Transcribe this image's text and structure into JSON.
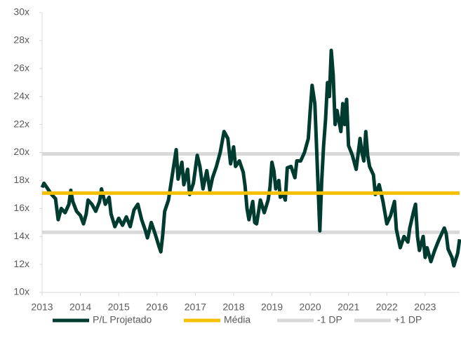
{
  "chart_data": {
    "type": "line",
    "xlim": [
      2013,
      2023.9
    ],
    "xticks": [
      2013,
      2014,
      2015,
      2016,
      2017,
      2018,
      2019,
      2020,
      2021,
      2022,
      2023
    ],
    "ylim": [
      10,
      30
    ],
    "yticks": [
      {
        "value": 10,
        "label": "10x"
      },
      {
        "value": 12,
        "label": "12x"
      },
      {
        "value": 14,
        "label": "14x"
      },
      {
        "value": 16,
        "label": "16x"
      },
      {
        "value": 18,
        "label": "18x"
      },
      {
        "value": 20,
        "label": "20x"
      },
      {
        "value": 22,
        "label": "22x"
      },
      {
        "value": 24,
        "label": "24x"
      },
      {
        "value": 26,
        "label": "26x"
      },
      {
        "value": 28,
        "label": "28x"
      },
      {
        "value": 30,
        "label": "30x"
      }
    ],
    "series": [
      {
        "name": "P/L Projetado",
        "color": "#003b30",
        "x": [
          2013.0,
          2013.05,
          2013.15,
          2013.25,
          2013.35,
          2013.42,
          2013.5,
          2013.6,
          2013.7,
          2013.75,
          2013.8,
          2013.9,
          2014.0,
          2014.08,
          2014.15,
          2014.2,
          2014.3,
          2014.4,
          2014.5,
          2014.55,
          2014.65,
          2014.75,
          2014.8,
          2014.9,
          2015.0,
          2015.1,
          2015.2,
          2015.3,
          2015.4,
          2015.5,
          2015.6,
          2015.7,
          2015.75,
          2015.85,
          2015.95,
          2016.05,
          2016.1,
          2016.15,
          2016.2,
          2016.3,
          2016.4,
          2016.5,
          2016.55,
          2016.65,
          2016.7,
          2016.8,
          2016.85,
          2016.95,
          2017.05,
          2017.12,
          2017.2,
          2017.3,
          2017.38,
          2017.45,
          2017.55,
          2017.65,
          2017.75,
          2017.85,
          2017.92,
          2018.0,
          2018.05,
          2018.15,
          2018.25,
          2018.3,
          2018.35,
          2018.4,
          2018.5,
          2018.55,
          2018.6,
          2018.7,
          2018.8,
          2018.9,
          2018.95,
          2019.0,
          2019.05,
          2019.1,
          2019.18,
          2019.22,
          2019.3,
          2019.35,
          2019.4,
          2019.5,
          2019.6,
          2019.65,
          2019.75,
          2019.85,
          2019.95,
          2020.0,
          2020.05,
          2020.12,
          2020.15,
          2020.2,
          2020.25,
          2020.3,
          2020.35,
          2020.4,
          2020.45,
          2020.5,
          2020.55,
          2020.6,
          2020.65,
          2020.7,
          2020.8,
          2020.85,
          2020.9,
          2020.95,
          2021.0,
          2021.1,
          2021.2,
          2021.3,
          2021.35,
          2021.4,
          2021.45,
          2021.5,
          2021.55,
          2021.65,
          2021.7,
          2021.8,
          2021.9,
          2022.0,
          2022.1,
          2022.2,
          2022.25,
          2022.35,
          2022.45,
          2022.55,
          2022.6,
          2022.7,
          2022.75,
          2022.8,
          2022.85,
          2022.95,
          2023.0,
          2023.05,
          2023.15,
          2023.25,
          2023.35,
          2023.4,
          2023.5,
          2023.55,
          2023.6,
          2023.7,
          2023.75,
          2023.85,
          2023.9
        ],
        "values": [
          17.5,
          17.8,
          17.4,
          17.0,
          16.7,
          15.2,
          16.0,
          15.7,
          16.3,
          17.3,
          16.5,
          15.8,
          15.5,
          14.9,
          15.6,
          16.6,
          16.3,
          15.8,
          16.5,
          17.4,
          16.3,
          16.8,
          15.6,
          14.7,
          15.3,
          14.8,
          15.4,
          14.7,
          15.9,
          16.3,
          15.2,
          14.4,
          13.9,
          15.0,
          14.2,
          13.3,
          12.9,
          14.1,
          15.8,
          16.6,
          18.4,
          20.2,
          18.1,
          19.3,
          17.7,
          18.8,
          17.0,
          17.8,
          19.8,
          19.0,
          17.4,
          18.7,
          17.3,
          18.2,
          19.0,
          20.0,
          21.5,
          21.0,
          19.2,
          20.4,
          19.0,
          19.4,
          18.6,
          17.6,
          16.0,
          15.2,
          16.5,
          15.0,
          14.9,
          16.6,
          15.7,
          16.6,
          17.5,
          19.3,
          18.7,
          17.4,
          18.0,
          16.8,
          17.0,
          16.6,
          18.9,
          19.0,
          18.2,
          19.4,
          19.4,
          20.0,
          21.0,
          23.0,
          24.8,
          23.5,
          21.5,
          18.0,
          14.4,
          18.0,
          20.5,
          22.3,
          25.0,
          24.0,
          27.3,
          25.5,
          22.0,
          23.0,
          21.5,
          23.5,
          22.0,
          23.8,
          20.5,
          19.8,
          18.8,
          21.0,
          20.0,
          19.4,
          21.5,
          19.8,
          19.0,
          18.4,
          17.0,
          17.7,
          16.5,
          14.9,
          15.5,
          16.5,
          14.5,
          13.2,
          14.0,
          13.6,
          14.6,
          15.8,
          16.3,
          14.0,
          13.0,
          14.0,
          12.5,
          13.2,
          12.2,
          13.0,
          13.7,
          14.0,
          14.6,
          14.2,
          13.1,
          12.5,
          11.9,
          12.8,
          13.8
        ]
      }
    ],
    "hlines": [
      {
        "name": "Média",
        "color": "#f5c000",
        "value": 17.1
      },
      {
        "name": "-1 DP",
        "color": "#d9d9d9",
        "value": 14.3
      },
      {
        "name": "+1 DP",
        "color": "#d9d9d9",
        "value": 19.9
      }
    ]
  }
}
